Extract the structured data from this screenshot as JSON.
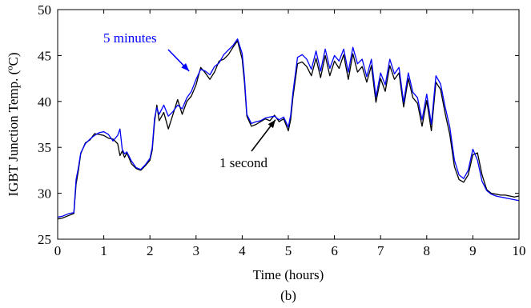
{
  "chart_data": {
    "type": "line",
    "title": "",
    "caption": "(b)",
    "xlabel": "Time (hours)",
    "ylabel": "IGBT Junction Temp. (ºC)",
    "xlim": [
      0,
      10
    ],
    "ylim": [
      25,
      50
    ],
    "xticks": [
      0,
      1,
      2,
      3,
      4,
      5,
      6,
      7,
      8,
      9,
      10
    ],
    "yticks": [
      25,
      30,
      35,
      40,
      45,
      50
    ],
    "grid": false,
    "annotations": [
      {
        "text": "5 minutes",
        "color": "#0000ff",
        "target": [
          2.85,
          43.3
        ]
      },
      {
        "text": "1 second",
        "color": "#000000",
        "target": [
          4.72,
          38.0
        ]
      }
    ],
    "series": [
      {
        "name": "5 minutes",
        "color": "#0000ff",
        "x": [
          0,
          0.1,
          0.25,
          0.35,
          0.4,
          0.45,
          0.5,
          0.6,
          0.7,
          0.8,
          0.9,
          1.0,
          1.1,
          1.2,
          1.3,
          1.35,
          1.4,
          1.45,
          1.5,
          1.6,
          1.7,
          1.8,
          1.9,
          2.0,
          2.05,
          2.1,
          2.15,
          2.2,
          2.3,
          2.4,
          2.5,
          2.6,
          2.7,
          2.8,
          2.9,
          3.0,
          3.1,
          3.2,
          3.3,
          3.4,
          3.5,
          3.6,
          3.7,
          3.8,
          3.9,
          4.0,
          4.05,
          4.1,
          4.2,
          4.3,
          4.4,
          4.5,
          4.6,
          4.7,
          4.8,
          4.9,
          5.0,
          5.05,
          5.1,
          5.2,
          5.3,
          5.4,
          5.5,
          5.6,
          5.7,
          5.8,
          5.9,
          6.0,
          6.1,
          6.2,
          6.3,
          6.4,
          6.5,
          6.6,
          6.7,
          6.8,
          6.9,
          7.0,
          7.1,
          7.2,
          7.3,
          7.4,
          7.5,
          7.6,
          7.7,
          7.8,
          7.9,
          8.0,
          8.1,
          8.2,
          8.3,
          8.4,
          8.5,
          8.6,
          8.7,
          8.8,
          8.9,
          9.0,
          9.1,
          9.2,
          9.3,
          9.4,
          9.5,
          9.6,
          9.7,
          9.8,
          9.9,
          10.0
        ],
        "y": [
          27.4,
          27.5,
          27.8,
          27.9,
          31.5,
          32.8,
          34.4,
          35.4,
          35.9,
          36.3,
          36.6,
          36.7,
          36.4,
          35.7,
          36.3,
          37.0,
          34.8,
          34.3,
          34.5,
          33.5,
          32.8,
          32.6,
          33.1,
          33.8,
          35.0,
          38.2,
          39.3,
          38.6,
          39.6,
          38.4,
          38.9,
          39.6,
          39.2,
          40.4,
          41.1,
          42.4,
          43.5,
          43.3,
          42.9,
          43.8,
          44.2,
          45.1,
          45.6,
          46.1,
          46.8,
          45.2,
          42.5,
          38.6,
          37.6,
          37.8,
          37.9,
          38.2,
          38.3,
          38.4,
          38.0,
          38.3,
          37.2,
          38.5,
          41.0,
          44.8,
          45.1,
          44.6,
          43.5,
          45.5,
          43.3,
          45.7,
          43.6,
          45.0,
          44.4,
          45.7,
          43.2,
          45.9,
          44.1,
          44.6,
          42.7,
          44.6,
          40.5,
          43.1,
          41.8,
          44.6,
          43.0,
          43.7,
          39.9,
          43.1,
          41.0,
          40.4,
          38.0,
          40.8,
          37.5,
          42.8,
          41.9,
          39.4,
          37.2,
          33.6,
          32.0,
          31.6,
          32.5,
          34.8,
          33.6,
          31.3,
          30.3,
          29.9,
          29.7,
          29.6,
          29.5,
          29.4,
          29.3,
          29.2
        ]
      },
      {
        "name": "1 second",
        "color": "#000000",
        "x": [
          0,
          0.1,
          0.25,
          0.35,
          0.4,
          0.45,
          0.5,
          0.6,
          0.7,
          0.8,
          0.9,
          1.0,
          1.1,
          1.2,
          1.3,
          1.35,
          1.4,
          1.45,
          1.5,
          1.6,
          1.7,
          1.8,
          1.9,
          2.0,
          2.05,
          2.1,
          2.15,
          2.2,
          2.3,
          2.4,
          2.5,
          2.6,
          2.7,
          2.8,
          2.9,
          3.0,
          3.1,
          3.2,
          3.3,
          3.4,
          3.5,
          3.6,
          3.7,
          3.8,
          3.9,
          4.0,
          4.05,
          4.1,
          4.2,
          4.3,
          4.4,
          4.5,
          4.6,
          4.7,
          4.8,
          4.9,
          5.0,
          5.05,
          5.1,
          5.2,
          5.3,
          5.4,
          5.5,
          5.6,
          5.7,
          5.8,
          5.9,
          6.0,
          6.1,
          6.2,
          6.3,
          6.4,
          6.5,
          6.6,
          6.7,
          6.8,
          6.9,
          7.0,
          7.1,
          7.2,
          7.3,
          7.4,
          7.5,
          7.6,
          7.7,
          7.8,
          7.9,
          8.0,
          8.1,
          8.2,
          8.3,
          8.4,
          8.5,
          8.6,
          8.7,
          8.8,
          8.9,
          9.0,
          9.1,
          9.2,
          9.3,
          9.4,
          9.5,
          9.6,
          9.7,
          9.8,
          9.9,
          10.0
        ],
        "y": [
          27.2,
          27.3,
          27.6,
          27.8,
          31.0,
          32.5,
          34.3,
          35.5,
          35.8,
          36.5,
          36.4,
          36.3,
          36.0,
          35.9,
          35.4,
          34.1,
          34.6,
          33.9,
          34.4,
          33.2,
          32.7,
          32.5,
          33.0,
          33.6,
          34.7,
          37.8,
          39.6,
          37.9,
          38.8,
          37.0,
          38.6,
          40.2,
          38.6,
          40.0,
          40.6,
          41.8,
          43.7,
          43.1,
          42.4,
          43.2,
          44.4,
          44.6,
          45.1,
          45.9,
          46.6,
          44.6,
          42.0,
          38.4,
          37.3,
          37.5,
          37.8,
          38.1,
          37.9,
          38.5,
          37.8,
          38.1,
          36.8,
          38.0,
          40.5,
          44.1,
          44.3,
          43.8,
          42.8,
          44.7,
          42.6,
          45.0,
          42.8,
          44.4,
          43.6,
          45.1,
          42.4,
          45.2,
          43.2,
          43.8,
          42.1,
          43.9,
          39.9,
          42.5,
          41.1,
          43.9,
          42.4,
          43.1,
          39.4,
          42.5,
          40.4,
          39.8,
          37.3,
          40.1,
          36.8,
          42.1,
          41.3,
          38.7,
          36.4,
          32.9,
          31.5,
          31.2,
          32.0,
          34.2,
          34.4,
          32.0,
          30.4,
          30.0,
          29.9,
          29.8,
          29.8,
          29.7,
          29.6,
          29.7
        ]
      }
    ]
  }
}
